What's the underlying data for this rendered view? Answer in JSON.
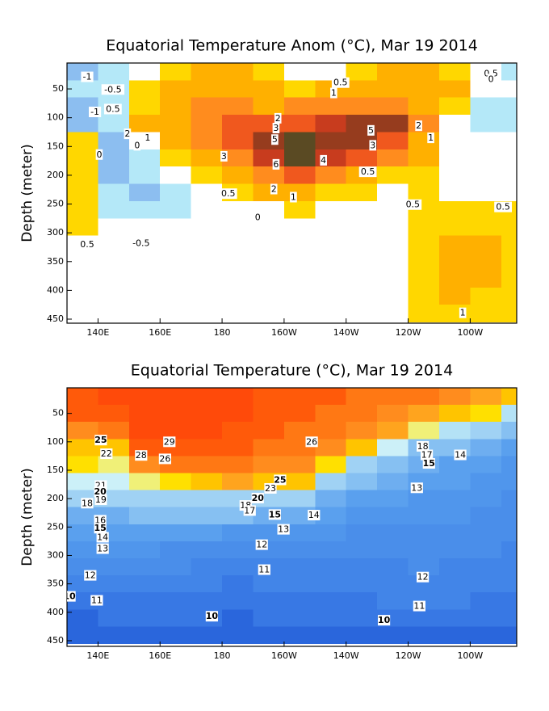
{
  "chart_data": [
    {
      "type": "contour",
      "title": "Equatorial Temperature Anom (°C), Mar 19 2014",
      "ylabel": "Depth (meter)",
      "xlim": [
        130,
        275
      ],
      "ylim": [
        5,
        457
      ],
      "yreverse": true,
      "xticks": [
        {
          "value": 140,
          "label": "140E"
        },
        {
          "value": 160,
          "label": "160E"
        },
        {
          "value": 180,
          "label": "180"
        },
        {
          "value": 200,
          "label": "160W"
        },
        {
          "value": 220,
          "label": "140W"
        },
        {
          "value": 240,
          "label": "120W"
        },
        {
          "value": 260,
          "label": "100W"
        }
      ],
      "yticks": [
        50,
        100,
        150,
        200,
        250,
        300,
        350,
        400,
        450
      ],
      "x": [
        135,
        145,
        155,
        165,
        175,
        185,
        195,
        205,
        215,
        225,
        235,
        245,
        255,
        265,
        275
      ],
      "y": [
        20,
        50,
        80,
        110,
        140,
        170,
        200,
        230,
        260,
        290,
        320,
        350,
        380,
        410,
        440
      ],
      "z": [
        [
          -1.2,
          -0.7,
          0.3,
          0.8,
          1.5,
          1.2,
          0.7,
          0.2,
          0.3,
          0.6,
          1.2,
          1.5,
          0.8,
          0.2,
          -0.8
        ],
        [
          -1,
          -0.7,
          0.7,
          1.5,
          1.8,
          1.5,
          1.2,
          0.8,
          1,
          1.5,
          1.8,
          1.5,
          1,
          0.3,
          -0.5
        ],
        [
          -1.2,
          -1,
          0.8,
          1.5,
          2.2,
          2,
          1.8,
          2,
          2.5,
          2.5,
          2.2,
          1.5,
          0.5,
          -0.6,
          -0.8
        ],
        [
          -1.3,
          -0.8,
          1.2,
          1.8,
          2.5,
          3.3,
          3.5,
          3.5,
          4.2,
          5.2,
          5,
          2.5,
          0.3,
          -0.7,
          -0.7
        ],
        [
          0.6,
          -1.2,
          -0.3,
          1.2,
          2.5,
          3.5,
          5,
          6.2,
          5.5,
          5,
          3.2,
          1.5,
          0.3,
          -0.2,
          0.1
        ],
        [
          0.7,
          -1.2,
          -0.7,
          0.6,
          1.8,
          2.8,
          4.5,
          6.3,
          4.5,
          3.5,
          2.2,
          1,
          0.1,
          0.2,
          0.3
        ],
        [
          0.6,
          -1.2,
          -1,
          -0.2,
          0.8,
          1.5,
          2.5,
          3.5,
          2.5,
          1.5,
          0.8,
          0.9,
          0,
          0.2,
          0.2
        ],
        [
          0.6,
          -0.8,
          -1.1,
          -0.6,
          0.2,
          0.6,
          1.3,
          1.5,
          0.9,
          0.5,
          0.3,
          0.7,
          0.2,
          0.3,
          0.4
        ],
        [
          0.6,
          -0.6,
          -0.8,
          -0.6,
          0,
          0.2,
          0.4,
          0.6,
          0.4,
          0.1,
          0.3,
          0.6,
          0.6,
          0.6,
          0.5
        ],
        [
          0.5,
          -0.3,
          -0.4,
          -0.2,
          -0.1,
          0,
          0.1,
          0,
          0,
          0.1,
          0.3,
          0.7,
          0.8,
          0.8,
          0.6
        ],
        [
          0.2,
          0,
          -0.1,
          0,
          0.1,
          0.2,
          0.2,
          0.1,
          0.1,
          0.2,
          0.3,
          0.7,
          1,
          1.2,
          0.7
        ],
        [
          0.1,
          0,
          0,
          0.1,
          0.1,
          0.2,
          0.2,
          0.1,
          0.1,
          0.2,
          0.3,
          0.8,
          1.3,
          1.3,
          0.8
        ],
        [
          0.1,
          0,
          0,
          0.1,
          0.1,
          0.1,
          0.1,
          0.1,
          0.1,
          0.2,
          0.3,
          0.8,
          1.2,
          1.2,
          0.7
        ],
        [
          0.1,
          0,
          0,
          0,
          0.1,
          0.1,
          0.1,
          0.1,
          0.1,
          0.2,
          0.3,
          0.7,
          1,
          0.9,
          0.6
        ],
        [
          0,
          0,
          0,
          0,
          0,
          0.1,
          0.1,
          0.1,
          0.1,
          0.2,
          0.3,
          0.6,
          0.8,
          0.7,
          0.5
        ]
      ],
      "levels": [
        -1,
        -0.5,
        0.5,
        1,
        2,
        3,
        4,
        5,
        6
      ],
      "colors": [
        "#8cbef0",
        "#b4e8f8",
        "#ffffff",
        "#ffd700",
        "#ffb000",
        "#ff8c1e",
        "#f0581e",
        "#c83c1e",
        "#963c1e",
        "#5a4a23"
      ],
      "contour_labels": [
        {
          "x": 136.5,
          "y": 29,
          "value": -1
        },
        {
          "x": 144.8,
          "y": 51,
          "value": -0.5
        },
        {
          "x": 139,
          "y": 90,
          "value": -1
        },
        {
          "x": 144.8,
          "y": 85,
          "value": 0.5
        },
        {
          "x": 149.5,
          "y": 128,
          "value": 2
        },
        {
          "x": 156,
          "y": 135,
          "value": 1
        },
        {
          "x": 152.6,
          "y": 148,
          "value": 0
        },
        {
          "x": 198,
          "y": 101,
          "value": 2
        },
        {
          "x": 197.4,
          "y": 118,
          "value": 3
        },
        {
          "x": 197,
          "y": 138,
          "value": 5
        },
        {
          "x": 228,
          "y": 122,
          "value": 5
        },
        {
          "x": 228.6,
          "y": 148,
          "value": 3
        },
        {
          "x": 212.7,
          "y": 174,
          "value": 4
        },
        {
          "x": 197.4,
          "y": 181,
          "value": 6
        },
        {
          "x": 180.6,
          "y": 167,
          "value": 3
        },
        {
          "x": 196.7,
          "y": 224,
          "value": 2
        },
        {
          "x": 203,
          "y": 238,
          "value": 1
        },
        {
          "x": 182,
          "y": 232,
          "value": 0.5
        },
        {
          "x": 191.5,
          "y": 273,
          "value": 0
        },
        {
          "x": 227,
          "y": 194,
          "value": 0.5
        },
        {
          "x": 243.4,
          "y": 114,
          "value": 2
        },
        {
          "x": 247.3,
          "y": 135,
          "value": 1
        },
        {
          "x": 241.5,
          "y": 251,
          "value": 0.5
        },
        {
          "x": 270.6,
          "y": 255,
          "value": 0.5
        },
        {
          "x": 218.2,
          "y": 39,
          "value": 0.5
        },
        {
          "x": 216,
          "y": 57,
          "value": 1
        },
        {
          "x": 266.7,
          "y": 23,
          "value": 0.5
        },
        {
          "x": 266.7,
          "y": 33,
          "value": 0
        },
        {
          "x": 153.9,
          "y": 318,
          "value": -0.5
        },
        {
          "x": 136.5,
          "y": 320,
          "value": 0.5
        },
        {
          "x": 257.6,
          "y": 439,
          "value": 1
        },
        {
          "x": 140.4,
          "y": 164,
          "value": 0
        }
      ]
    },
    {
      "type": "contour",
      "title": "Equatorial Temperature (°C), Mar 19 2014",
      "ylabel": "Depth (meter)",
      "xlim": [
        130,
        275
      ],
      "ylim": [
        5,
        460
      ],
      "yreverse": true,
      "xticks": [
        {
          "value": 140,
          "label": "140E"
        },
        {
          "value": 160,
          "label": "160E"
        },
        {
          "value": 180,
          "label": "180"
        },
        {
          "value": 200,
          "label": "160W"
        },
        {
          "value": 220,
          "label": "140W"
        },
        {
          "value": 240,
          "label": "120W"
        },
        {
          "value": 260,
          "label": "100W"
        }
      ],
      "yticks": [
        50,
        100,
        150,
        200,
        250,
        300,
        350,
        400,
        450
      ],
      "x": [
        135,
        145,
        155,
        165,
        175,
        185,
        195,
        205,
        215,
        225,
        235,
        245,
        255,
        265,
        275
      ],
      "y": [
        20,
        50,
        80,
        110,
        140,
        170,
        200,
        230,
        260,
        290,
        320,
        350,
        380,
        410,
        440
      ],
      "z": [
        [
          28.5,
          29.2,
          29.3,
          29.3,
          29.4,
          29.2,
          28.8,
          28.5,
          28.2,
          27.8,
          27.5,
          27,
          26.5,
          25.5,
          24
        ],
        [
          28,
          28.8,
          29.2,
          29.2,
          29.2,
          29,
          28.5,
          28,
          27.8,
          27.2,
          26.5,
          25.5,
          24.5,
          23,
          20
        ],
        [
          26.5,
          27.5,
          29,
          29.1,
          29,
          28.5,
          28,
          27.5,
          27,
          26,
          25,
          22,
          20,
          19,
          17
        ],
        [
          24,
          24.5,
          28.5,
          28.5,
          28.5,
          28,
          27.5,
          27,
          26,
          24,
          21,
          17,
          16,
          15,
          14
        ],
        [
          23,
          22,
          26,
          27,
          27.5,
          27.2,
          26.5,
          26,
          23,
          19,
          16.5,
          15,
          14.5,
          14,
          13.5
        ],
        [
          21,
          21.5,
          22,
          23,
          24.5,
          25,
          24.5,
          24,
          19,
          16,
          15,
          14.5,
          14,
          13.5,
          13
        ],
        [
          18,
          18.5,
          18.5,
          18.5,
          19,
          19.5,
          19.5,
          18,
          15.5,
          14.5,
          14,
          13.5,
          13.5,
          13,
          12.8
        ],
        [
          15.5,
          15.8,
          16,
          16,
          16,
          16.2,
          15.5,
          15,
          14.2,
          13.8,
          13.5,
          13.2,
          13,
          12.8,
          12.5
        ],
        [
          14,
          14.2,
          14.5,
          14.2,
          14,
          13.8,
          13.5,
          13.2,
          13,
          12.8,
          12.8,
          12.6,
          12.5,
          12.3,
          12.2
        ],
        [
          13,
          13.2,
          13,
          12.8,
          12.6,
          12.3,
          12.2,
          12.2,
          12.3,
          12.3,
          12.2,
          12.2,
          12.1,
          12,
          11.8
        ],
        [
          12.3,
          12.5,
          12.2,
          12,
          11.8,
          11.6,
          11.6,
          11.8,
          11.8,
          11.8,
          11.9,
          12,
          11.8,
          11.7,
          11.5
        ],
        [
          11.2,
          11.5,
          11.4,
          11.2,
          11,
          10.9,
          11,
          11.2,
          11.3,
          11.4,
          11.5,
          11.6,
          11.4,
          11.3,
          11.2
        ],
        [
          10.3,
          10.8,
          10.9,
          10.6,
          10.4,
          10.3,
          10.5,
          10.6,
          10.7,
          10.8,
          11,
          11.1,
          11,
          10.9,
          10.8
        ],
        [
          9.6,
          10.1,
          10.1,
          10.1,
          10,
          9.8,
          10,
          10.1,
          10.2,
          10.1,
          10.2,
          10.3,
          10.4,
          10.3,
          10.2
        ],
        [
          9.2,
          9.5,
          9.5,
          9.4,
          9.3,
          9.3,
          9.4,
          9.5,
          9.6,
          9.7,
          9.7,
          9.8,
          9.9,
          9.8,
          9.7
        ]
      ],
      "levels": [
        10,
        11,
        12,
        13,
        14,
        15,
        16,
        18,
        20,
        21,
        22,
        23,
        24,
        25,
        26,
        27,
        28,
        29
      ],
      "colors": [
        "#2a66dc",
        "#3878e4",
        "#4285e8",
        "#4a8eea",
        "#5096ec",
        "#5aa0ee",
        "#6eaef0",
        "#86c0f2",
        "#a0d2f4",
        "#b4e2f6",
        "#ccf0f8",
        "#f0f078",
        "#ffe000",
        "#ffc400",
        "#ffa41e",
        "#ff8c1e",
        "#ff7814",
        "#ff5a0a",
        "#ff4a0a"
      ],
      "contour_labels": [
        {
          "x": 140.9,
          "y": 97,
          "value": 25
        },
        {
          "x": 142.7,
          "y": 121,
          "value": 22
        },
        {
          "x": 153.9,
          "y": 124,
          "value": 28
        },
        {
          "x": 163,
          "y": 100,
          "value": 29
        },
        {
          "x": 161.6,
          "y": 130,
          "value": 26
        },
        {
          "x": 208.9,
          "y": 100,
          "value": 26
        },
        {
          "x": 198.7,
          "y": 167,
          "value": 25
        },
        {
          "x": 195.6,
          "y": 182,
          "value": 23
        },
        {
          "x": 191.5,
          "y": 199,
          "value": 20
        },
        {
          "x": 187.6,
          "y": 212,
          "value": 18
        },
        {
          "x": 188.9,
          "y": 221,
          "value": 17
        },
        {
          "x": 197,
          "y": 228,
          "value": 15
        },
        {
          "x": 209.6,
          "y": 229,
          "value": 14
        },
        {
          "x": 199.8,
          "y": 254,
          "value": 13
        },
        {
          "x": 192.8,
          "y": 281,
          "value": 12
        },
        {
          "x": 193.6,
          "y": 325,
          "value": 11
        },
        {
          "x": 176.7,
          "y": 407,
          "value": 10
        },
        {
          "x": 232.2,
          "y": 414,
          "value": 10
        },
        {
          "x": 243.6,
          "y": 389,
          "value": 11
        },
        {
          "x": 244.7,
          "y": 338,
          "value": 12
        },
        {
          "x": 242.8,
          "y": 181,
          "value": 13
        },
        {
          "x": 256.8,
          "y": 123,
          "value": 14
        },
        {
          "x": 244.7,
          "y": 108,
          "value": 18
        },
        {
          "x": 246,
          "y": 123,
          "value": 17
        },
        {
          "x": 246.7,
          "y": 138,
          "value": 15
        },
        {
          "x": 140.9,
          "y": 177,
          "value": 21
        },
        {
          "x": 140.7,
          "y": 188,
          "value": 20
        },
        {
          "x": 136.5,
          "y": 208,
          "value": 18
        },
        {
          "x": 140.9,
          "y": 202,
          "value": 19
        },
        {
          "x": 140.7,
          "y": 238,
          "value": 16
        },
        {
          "x": 140.7,
          "y": 252,
          "value": 15
        },
        {
          "x": 141.5,
          "y": 268,
          "value": 14
        },
        {
          "x": 141.5,
          "y": 288,
          "value": 13
        },
        {
          "x": 137.5,
          "y": 335,
          "value": 12
        },
        {
          "x": 139.6,
          "y": 379,
          "value": 11
        },
        {
          "x": 130.8,
          "y": 372,
          "value": 10
        }
      ]
    }
  ]
}
